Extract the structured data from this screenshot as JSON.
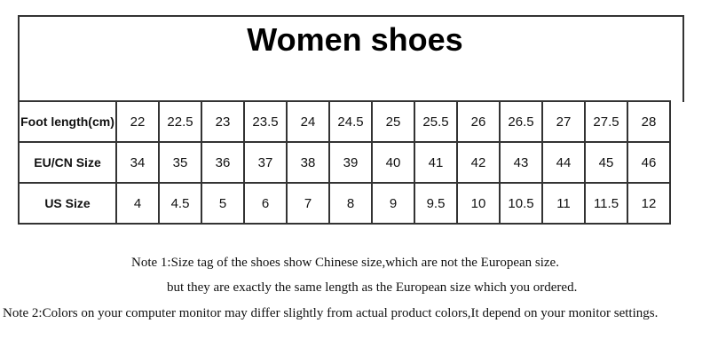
{
  "title": "Women shoes",
  "rows": [
    {
      "label": "Foot length(cm)",
      "values": [
        "22",
        "22.5",
        "23",
        "23.5",
        "24",
        "24.5",
        "25",
        "25.5",
        "26",
        "26.5",
        "27",
        "27.5",
        "28"
      ]
    },
    {
      "label": "EU/CN Size",
      "values": [
        "34",
        "35",
        "36",
        "37",
        "38",
        "39",
        "40",
        "41",
        "42",
        "43",
        "44",
        "45",
        "46"
      ]
    },
    {
      "label": "US Size",
      "values": [
        "4",
        "4.5",
        "5",
        "6",
        "7",
        "8",
        "9",
        "9.5",
        "10",
        "10.5",
        "11",
        "11.5",
        "12"
      ]
    }
  ],
  "notes": [
    "Note 1:Size tag of the shoes show Chinese size,which are not the European size.",
    "but they are exactly the same length as the European size which you ordered.",
    "Note 2:Colors on your computer monitor may differ slightly from actual product colors,It depend on your monitor settings."
  ]
}
